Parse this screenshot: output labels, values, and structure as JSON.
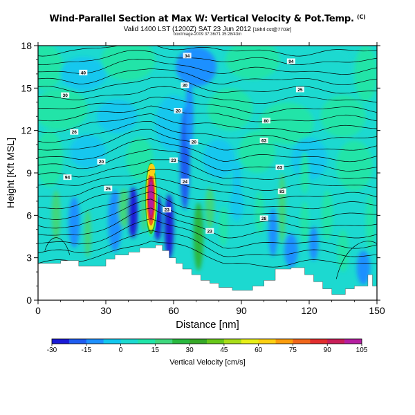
{
  "header": {
    "title": "Wind-Parallel Section at Max W: Vertical Velocity & Pot.Temp.",
    "copyright": "(C)",
    "valid_line": "Valid 1400 LST (1200Z) SAT 23 Jun 2012",
    "valid_suffix": "[18hrl cst@7703r]",
    "info_line": "box/Image-2009 37:36/71 35:28/43m"
  },
  "chart_data": {
    "type": "heatmap",
    "title": "Wind-Parallel Section at Max W: Vertical Velocity & Pot.Temp.",
    "xlabel": "Distance [nm]",
    "ylabel": "Height [Kft MSL]",
    "xlim": [
      0,
      150
    ],
    "ylim": [
      0,
      18
    ],
    "x_ticks": [
      0,
      30,
      60,
      90,
      120,
      150
    ],
    "y_ticks": [
      0,
      3,
      6,
      9,
      12,
      15,
      18
    ],
    "colorbar": {
      "label": "Vertical Velocity [cm/s]",
      "ticks": [
        -30,
        -15,
        0,
        15,
        30,
        45,
        60,
        75,
        90,
        105
      ],
      "range": [
        -30,
        105
      ],
      "colors": [
        "#1a1ad6",
        "#1f5cf0",
        "#1e90ff",
        "#12c7ee",
        "#1cd9d0",
        "#20e4a8",
        "#3fd77d",
        "#29b83f",
        "#36a827",
        "#67c719",
        "#a8dc19",
        "#e6ee18",
        "#fcd013",
        "#fb9c0c",
        "#f0661a",
        "#e12e2e",
        "#c81e58",
        "#b51ea0"
      ]
    },
    "theta_contour_labels": [
      {
        "x": 20,
        "y": 16.1,
        "text": "40"
      },
      {
        "x": 12,
        "y": 14.5,
        "text": "30"
      },
      {
        "x": 66,
        "y": 17.3,
        "text": "34"
      },
      {
        "x": 65,
        "y": 15.2,
        "text": "30"
      },
      {
        "x": 16,
        "y": 11.9,
        "text": "26"
      },
      {
        "x": 28,
        "y": 9.8,
        "text": "20"
      },
      {
        "x": 13,
        "y": 8.7,
        "text": "94"
      },
      {
        "x": 31,
        "y": 7.9,
        "text": "25"
      },
      {
        "x": 62,
        "y": 13.4,
        "text": "20"
      },
      {
        "x": 69,
        "y": 11.2,
        "text": "20"
      },
      {
        "x": 60,
        "y": 9.9,
        "text": "23"
      },
      {
        "x": 65,
        "y": 8.4,
        "text": "24"
      },
      {
        "x": 57,
        "y": 6.4,
        "text": "23"
      },
      {
        "x": 76,
        "y": 4.9,
        "text": "23"
      },
      {
        "x": 112,
        "y": 16.9,
        "text": "94"
      },
      {
        "x": 116,
        "y": 14.9,
        "text": "25"
      },
      {
        "x": 101,
        "y": 12.7,
        "text": "80"
      },
      {
        "x": 100,
        "y": 11.3,
        "text": "63"
      },
      {
        "x": 107,
        "y": 9.4,
        "text": "63"
      },
      {
        "x": 108,
        "y": 7.7,
        "text": "83"
      },
      {
        "x": 100,
        "y": 5.8,
        "text": "28"
      }
    ]
  }
}
